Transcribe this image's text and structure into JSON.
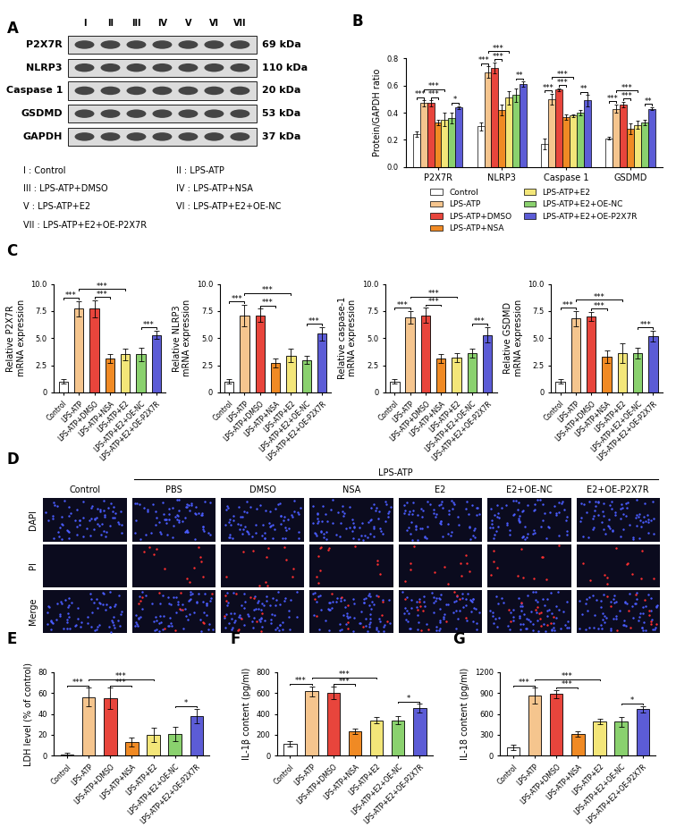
{
  "panels": {
    "A": {
      "lanes": [
        "I",
        "II",
        "III",
        "IV",
        "V",
        "VI",
        "VII"
      ],
      "rows": [
        {
          "protein": "P2X7R",
          "size": "69 kDa"
        },
        {
          "protein": "NLRP3",
          "size": "110 kDa"
        },
        {
          "protein": "Caspase 1",
          "size": "20 kDa"
        },
        {
          "protein": "GSDMD",
          "size": "53 kDa"
        },
        {
          "protein": "GAPDH",
          "size": "37 kDa"
        }
      ],
      "key": [
        "I : Control",
        "II : LPS-ATP",
        "III : LPS-ATP+DMSO",
        "IV : LPS-ATP+NSA",
        "V : LPS-ATP+E2",
        "VI : LPS-ATP+E2+OE-NC",
        "VII : LPS-ATP+E2+OE-P2X7R"
      ]
    },
    "D": {
      "columns": [
        "Control",
        "PBS",
        "DMSO",
        "NSA",
        "E2",
        "E2+OE-NC",
        "E2+OE-P2X7R"
      ],
      "group": "LPS-ATP",
      "rows": [
        "DAPI",
        "PI",
        "Merge"
      ]
    }
  },
  "chart_data": [
    {
      "panel": "B",
      "type": "bar",
      "categories": [
        "P2X7R",
        "NLRP3",
        "Caspase 1",
        "GSDMD"
      ],
      "ylabel": "Protein/GAPDH ratio",
      "ylim": [
        0,
        0.8
      ],
      "yticks": [
        {
          "value": 0,
          "label": "0.0"
        },
        {
          "value": 0.2,
          "label": "0.2"
        },
        {
          "value": 0.4,
          "label": "0.4"
        },
        {
          "value": 0.6,
          "label": "0.6"
        },
        {
          "value": 0.8,
          "label": "0.8"
        }
      ],
      "legend": "below",
      "series": [
        {
          "name": "Control",
          "color": "#FFFFFF",
          "values": [
            0.24,
            0.3,
            0.17,
            0.21
          ],
          "errors": [
            0.02,
            0.03,
            0.04,
            0.01
          ]
        },
        {
          "name": "LPS-ATP",
          "color": "#F5C58E",
          "values": [
            0.47,
            0.7,
            0.5,
            0.43
          ],
          "errors": [
            0.02,
            0.04,
            0.04,
            0.03
          ]
        },
        {
          "name": "LPS-ATP+DMSO",
          "color": "#E8453C",
          "values": [
            0.47,
            0.73,
            0.57,
            0.46
          ],
          "errors": [
            0.02,
            0.04,
            0.01,
            0.02
          ]
        },
        {
          "name": "LPS-ATP+NSA",
          "color": "#F08A24",
          "values": [
            0.33,
            0.42,
            0.37,
            0.28
          ],
          "errors": [
            0.02,
            0.04,
            0.02,
            0.04
          ]
        },
        {
          "name": "LPS-ATP+E2",
          "color": "#F3E679",
          "values": [
            0.35,
            0.51,
            0.38,
            0.31
          ],
          "errors": [
            0.05,
            0.05,
            0.01,
            0.03
          ]
        },
        {
          "name": "LPS-ATP+E2+OE-NC",
          "color": "#8AD16E",
          "values": [
            0.36,
            0.53,
            0.4,
            0.33
          ],
          "errors": [
            0.04,
            0.05,
            0.02,
            0.02
          ]
        },
        {
          "name": "LPS-ATP+E2+OE-P2X7R",
          "color": "#5C5CD6",
          "values": [
            0.44,
            0.61,
            0.49,
            0.43
          ],
          "errors": [
            0.01,
            0.02,
            0.04,
            0.01
          ]
        }
      ],
      "significance": [
        {
          "category": 0,
          "between": [
            0,
            1
          ],
          "text": "***"
        },
        {
          "category": 0,
          "between": [
            2,
            3
          ],
          "text": "***"
        },
        {
          "category": 0,
          "between": [
            1,
            4
          ],
          "text": "***"
        },
        {
          "category": 0,
          "between": [
            5,
            6
          ],
          "text": "*"
        },
        {
          "category": 1,
          "between": [
            0,
            1
          ],
          "text": "***"
        },
        {
          "category": 1,
          "between": [
            2,
            3
          ],
          "text": "***"
        },
        {
          "category": 1,
          "between": [
            1,
            4
          ],
          "text": "***"
        },
        {
          "category": 1,
          "between": [
            5,
            6
          ],
          "text": "**"
        },
        {
          "category": 2,
          "between": [
            0,
            1
          ],
          "text": "***"
        },
        {
          "category": 2,
          "between": [
            2,
            3
          ],
          "text": "***"
        },
        {
          "category": 2,
          "between": [
            1,
            4
          ],
          "text": "***"
        },
        {
          "category": 2,
          "between": [
            5,
            6
          ],
          "text": "**"
        },
        {
          "category": 3,
          "between": [
            0,
            1
          ],
          "text": "***"
        },
        {
          "category": 3,
          "between": [
            2,
            3
          ],
          "text": "***"
        },
        {
          "category": 3,
          "between": [
            1,
            4
          ],
          "text": "***"
        },
        {
          "category": 3,
          "between": [
            5,
            6
          ],
          "text": "**"
        }
      ]
    },
    {
      "panel": "C",
      "type": "bar",
      "categories": [
        "Control",
        "LPS-ATP",
        "LPS-ATP+DMSO",
        "LPS-ATP+NSA",
        "LPS-ATP+E2",
        "LPS-ATP+E2+OE-NC",
        "LPS-ATP+E2+OE-P2X7R"
      ],
      "ylabel": "Relative P2X7R\nmRNA expression",
      "ylim": [
        0,
        10
      ],
      "yticks": [
        0,
        2.5,
        {
          "value": 5,
          "label": "5.0"
        },
        7.5,
        {
          "value": 10,
          "label": "10.0"
        }
      ],
      "values": [
        1.0,
        7.7,
        7.7,
        3.1,
        3.5,
        3.5,
        5.3
      ],
      "errors": [
        0.2,
        0.7,
        0.8,
        0.4,
        0.5,
        0.6,
        0.4
      ],
      "colors": [
        "#FFFFFF",
        "#F5C58E",
        "#E8453C",
        "#F08A24",
        "#F3E679",
        "#8AD16E",
        "#5C5CD6"
      ],
      "significance": [
        {
          "between": [
            0,
            1
          ],
          "text": "***"
        },
        {
          "between": [
            2,
            3
          ],
          "text": "***"
        },
        {
          "between": [
            1,
            4
          ],
          "text": "***"
        },
        {
          "between": [
            5,
            6
          ],
          "text": "***"
        }
      ]
    },
    {
      "type": "bar",
      "categories": [
        "Control",
        "LPS-ATP",
        "LPS-ATP+DMSO",
        "LPS-ATP+NSA",
        "LPS-ATP+E2",
        "LPS-ATP+E2+OE-NC",
        "LPS-ATP+E2+OE-P2X7R"
      ],
      "ylabel": "Relative NLRP3\nmRNA expression",
      "ylim": [
        0,
        10
      ],
      "yticks": [
        0,
        2.5,
        {
          "value": 5,
          "label": "5.0"
        },
        7.5,
        {
          "value": 10,
          "label": "10.0"
        }
      ],
      "values": [
        1.0,
        7.1,
        7.1,
        2.7,
        3.4,
        3.0,
        5.4
      ],
      "errors": [
        0.2,
        1.0,
        0.6,
        0.4,
        0.6,
        0.4,
        0.6
      ],
      "colors": [
        "#FFFFFF",
        "#F5C58E",
        "#E8453C",
        "#F08A24",
        "#F3E679",
        "#8AD16E",
        "#5C5CD6"
      ],
      "significance": [
        {
          "between": [
            0,
            1
          ],
          "text": "***"
        },
        {
          "between": [
            2,
            3
          ],
          "text": "***"
        },
        {
          "between": [
            1,
            4
          ],
          "text": "***"
        },
        {
          "between": [
            5,
            6
          ],
          "text": "***"
        }
      ]
    },
    {
      "type": "bar",
      "categories": [
        "Control",
        "LPS-ATP",
        "LPS-ATP+DMSO",
        "LPS-ATP+NSA",
        "LPS-ATP+E2",
        "LPS-ATP+E2+OE-NC",
        "LPS-ATP+E2+OE-P2X7R"
      ],
      "ylabel": "Relative caspase-1\nmRNA expression",
      "ylim": [
        0,
        10
      ],
      "yticks": [
        0,
        2.5,
        {
          "value": 5,
          "label": "5.0"
        },
        7.5,
        {
          "value": 10,
          "label": "10.0"
        }
      ],
      "values": [
        1.0,
        6.9,
        7.1,
        3.1,
        3.2,
        3.6,
        5.3
      ],
      "errors": [
        0.2,
        0.6,
        0.7,
        0.4,
        0.4,
        0.4,
        0.7
      ],
      "colors": [
        "#FFFFFF",
        "#F5C58E",
        "#E8453C",
        "#F08A24",
        "#F3E679",
        "#8AD16E",
        "#5C5CD6"
      ],
      "significance": [
        {
          "between": [
            0,
            1
          ],
          "text": "***"
        },
        {
          "between": [
            2,
            3
          ],
          "text": "***"
        },
        {
          "between": [
            1,
            4
          ],
          "text": "***"
        },
        {
          "between": [
            5,
            6
          ],
          "text": "***"
        }
      ]
    },
    {
      "type": "bar",
      "categories": [
        "Control",
        "LPS-ATP",
        "LPS-ATP+DMSO",
        "LPS-ATP+NSA",
        "LPS-ATP+E2",
        "LPS-ATP+E2+OE-NC",
        "LPS-ATP+E2+OE-P2X7R"
      ],
      "ylabel": "Relative GSDMD\nmRNA expression",
      "ylim": [
        0,
        10
      ],
      "yticks": [
        0,
        2.5,
        {
          "value": 5,
          "label": "5.0"
        },
        7.5,
        {
          "value": 10,
          "label": "10.0"
        }
      ],
      "values": [
        1.0,
        6.8,
        7.0,
        3.3,
        3.6,
        3.6,
        5.2
      ],
      "errors": [
        0.2,
        0.7,
        0.4,
        0.6,
        0.9,
        0.5,
        0.5
      ],
      "colors": [
        "#FFFFFF",
        "#F5C58E",
        "#E8453C",
        "#F08A24",
        "#F3E679",
        "#8AD16E",
        "#5C5CD6"
      ],
      "significance": [
        {
          "between": [
            0,
            1
          ],
          "text": "***"
        },
        {
          "between": [
            2,
            3
          ],
          "text": "***"
        },
        {
          "between": [
            1,
            4
          ],
          "text": "***"
        },
        {
          "between": [
            5,
            6
          ],
          "text": "***"
        }
      ]
    },
    {
      "panel": "E",
      "type": "bar",
      "categories": [
        "Control",
        "LPS-ATP",
        "LPS-ATP+DMSO",
        "LPS-ATP+NSA",
        "LPS-ATP+E2",
        "LPS-ATP+E2+OE-NC",
        "LPS-ATP+E2+OE-P2X7R"
      ],
      "ylabel": "LDH level (% of control)",
      "ylim": [
        0,
        80
      ],
      "yticks": [
        0,
        20,
        40,
        60,
        80
      ],
      "values": [
        1,
        56,
        55,
        13,
        20,
        21,
        38
      ],
      "errors": [
        2,
        9,
        10,
        4,
        7,
        7,
        7
      ],
      "colors": [
        "#FFFFFF",
        "#F5C58E",
        "#E8453C",
        "#F08A24",
        "#F3E679",
        "#8AD16E",
        "#5C5CD6"
      ],
      "significance": [
        {
          "between": [
            0,
            1
          ],
          "text": "***"
        },
        {
          "between": [
            2,
            3
          ],
          "text": "***"
        },
        {
          "between": [
            1,
            4
          ],
          "text": "***"
        },
        {
          "between": [
            5,
            6
          ],
          "text": "*"
        }
      ]
    },
    {
      "panel": "F",
      "type": "bar",
      "categories": [
        "Control",
        "LPS-ATP",
        "LPS-ATP+DMSO",
        "LPS-ATP+NSA",
        "LPS-ATP+E2",
        "LPS-ATP+E2+OE-NC",
        "LPS-ATP+E2+OE-P2X7R"
      ],
      "ylabel": "IL-1β content (pg/ml)",
      "ylim": [
        0,
        800
      ],
      "yticks": [
        0,
        200,
        400,
        600,
        800
      ],
      "values": [
        115,
        615,
        600,
        230,
        340,
        340,
        455
      ],
      "errors": [
        25,
        50,
        60,
        25,
        30,
        35,
        40
      ],
      "colors": [
        "#FFFFFF",
        "#F5C58E",
        "#E8453C",
        "#F08A24",
        "#F3E679",
        "#8AD16E",
        "#5C5CD6"
      ],
      "significance": [
        {
          "between": [
            0,
            1
          ],
          "text": "***"
        },
        {
          "between": [
            2,
            3
          ],
          "text": "***"
        },
        {
          "between": [
            1,
            4
          ],
          "text": "***"
        },
        {
          "between": [
            5,
            6
          ],
          "text": "*"
        }
      ]
    },
    {
      "panel": "G",
      "type": "bar",
      "categories": [
        "Control",
        "LPS-ATP",
        "LPS-ATP+DMSO",
        "LPS-ATP+NSA",
        "LPS-ATP+E2",
        "LPS-ATP+E2+OE-NC",
        "LPS-ATP+E2+OE-P2X7R"
      ],
      "ylabel": "IL-18 content (pg/ml)",
      "ylim": [
        0,
        1200
      ],
      "yticks": [
        0,
        300,
        600,
        900,
        1200
      ],
      "values": [
        120,
        865,
        885,
        315,
        490,
        490,
        670
      ],
      "errors": [
        35,
        110,
        60,
        40,
        40,
        70,
        45
      ],
      "colors": [
        "#FFFFFF",
        "#F5C58E",
        "#E8453C",
        "#F08A24",
        "#F3E679",
        "#8AD16E",
        "#5C5CD6"
      ],
      "significance": [
        {
          "between": [
            0,
            1
          ],
          "text": "***"
        },
        {
          "between": [
            2,
            3
          ],
          "text": "***"
        },
        {
          "between": [
            1,
            4
          ],
          "text": "***"
        },
        {
          "between": [
            5,
            6
          ],
          "text": "*"
        }
      ]
    }
  ]
}
